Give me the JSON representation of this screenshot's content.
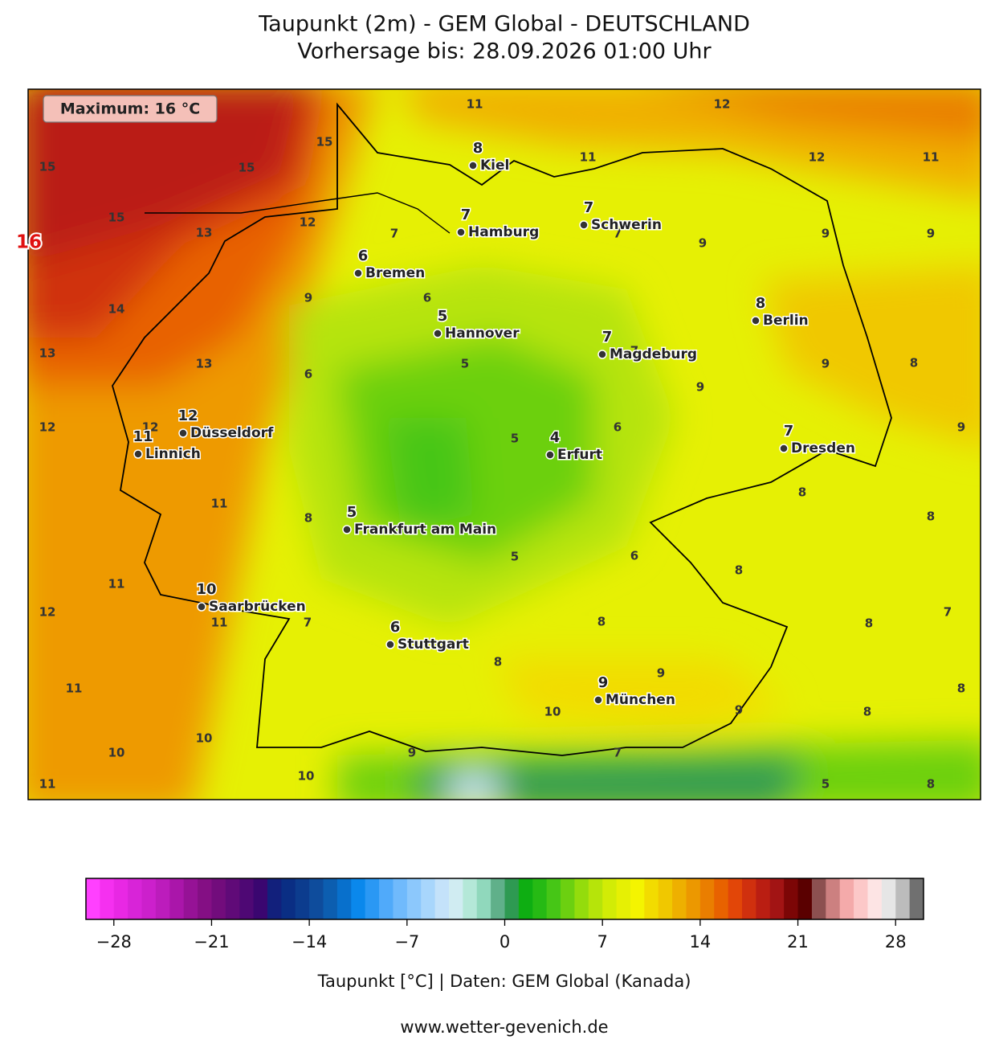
{
  "header": {
    "title": "Taupunkt (2m) - GEM Global - DEUTSCHLAND",
    "subtitle": "Vorhersage bis: 28.09.2026 01:00 Uhr"
  },
  "map": {
    "maximum": {
      "text": "Maximum: 16 °C",
      "value": 16
    },
    "cities": [
      {
        "name": "Kiel",
        "value": 8
      },
      {
        "name": "Hamburg",
        "value": 7
      },
      {
        "name": "Schwerin",
        "value": 7
      },
      {
        "name": "Bremen",
        "value": 6
      },
      {
        "name": "Hannover",
        "value": 5
      },
      {
        "name": "Berlin",
        "value": 8
      },
      {
        "name": "Magdeburg",
        "value": 7
      },
      {
        "name": "Düsseldorf",
        "value": 12
      },
      {
        "name": "Linnich",
        "value": 11
      },
      {
        "name": "Erfurt",
        "value": 4
      },
      {
        "name": "Dresden",
        "value": 7
      },
      {
        "name": "Frankfurt am Main",
        "value": 5
      },
      {
        "name": "Saarbrücken",
        "value": 10
      },
      {
        "name": "Stuttgart",
        "value": 6
      },
      {
        "name": "München",
        "value": 9
      }
    ],
    "contour_labels": [
      11,
      12,
      15,
      15,
      15,
      11,
      12,
      11,
      15,
      13,
      12,
      7,
      7,
      9,
      9,
      9,
      9,
      6,
      14,
      13,
      13,
      5,
      7,
      9,
      8,
      6,
      9,
      12,
      12,
      5,
      6,
      9,
      11,
      8,
      8,
      8,
      5,
      6,
      8,
      11,
      12,
      11,
      7,
      8,
      8,
      7,
      8,
      9,
      11,
      8,
      10,
      9,
      8,
      10,
      10,
      9,
      7,
      10,
      11,
      5,
      8
    ]
  },
  "colorbar": {
    "range": [
      -30,
      30
    ],
    "colors": [
      "#ff40ff",
      "#f530f0",
      "#e828e4",
      "#d824d8",
      "#cc20cc",
      "#bc1cbc",
      "#aa16aa",
      "#961296",
      "#840f84",
      "#720c7c",
      "#600a78",
      "#4e0874",
      "#3a0670",
      "#12207c",
      "#0a2e84",
      "#0c3c8e",
      "#0e4c9c",
      "#0c5eb0",
      "#0870cc",
      "#0a88ec",
      "#2a98f4",
      "#50aafa",
      "#70bafc",
      "#8cc8fc",
      "#a8d6fc",
      "#c4e2fa",
      "#d0ecf2",
      "#b4e8d8",
      "#90d8bc",
      "#60b08a",
      "#2e9a52",
      "#0eae12",
      "#26ba14",
      "#46c616",
      "#6cd010",
      "#94dc0c",
      "#b6e40a",
      "#d2ec06",
      "#e6f004",
      "#f4f400",
      "#f2dc00",
      "#f0c800",
      "#eeb000",
      "#ec9800",
      "#ea7e00",
      "#e86200",
      "#e24608",
      "#d0300e",
      "#ba1e12",
      "#a21414",
      "#7c0606",
      "#5a0000",
      "#8c5050",
      "#cc8080",
      "#f4aaaa",
      "#fcc8c8",
      "#fde4e4",
      "#e6e6e6",
      "#bcbcbc",
      "#707070"
    ],
    "ticks": [
      {
        "value": -28,
        "label": "−28"
      },
      {
        "value": -21,
        "label": "−21"
      },
      {
        "value": -14,
        "label": "−14"
      },
      {
        "value": -7,
        "label": "−7"
      },
      0,
      7,
      14,
      21,
      28
    ],
    "label": "Taupunkt [°C] | Daten: GEM Global (Kanada)"
  },
  "footer": "www.wetter-gevenich.de"
}
